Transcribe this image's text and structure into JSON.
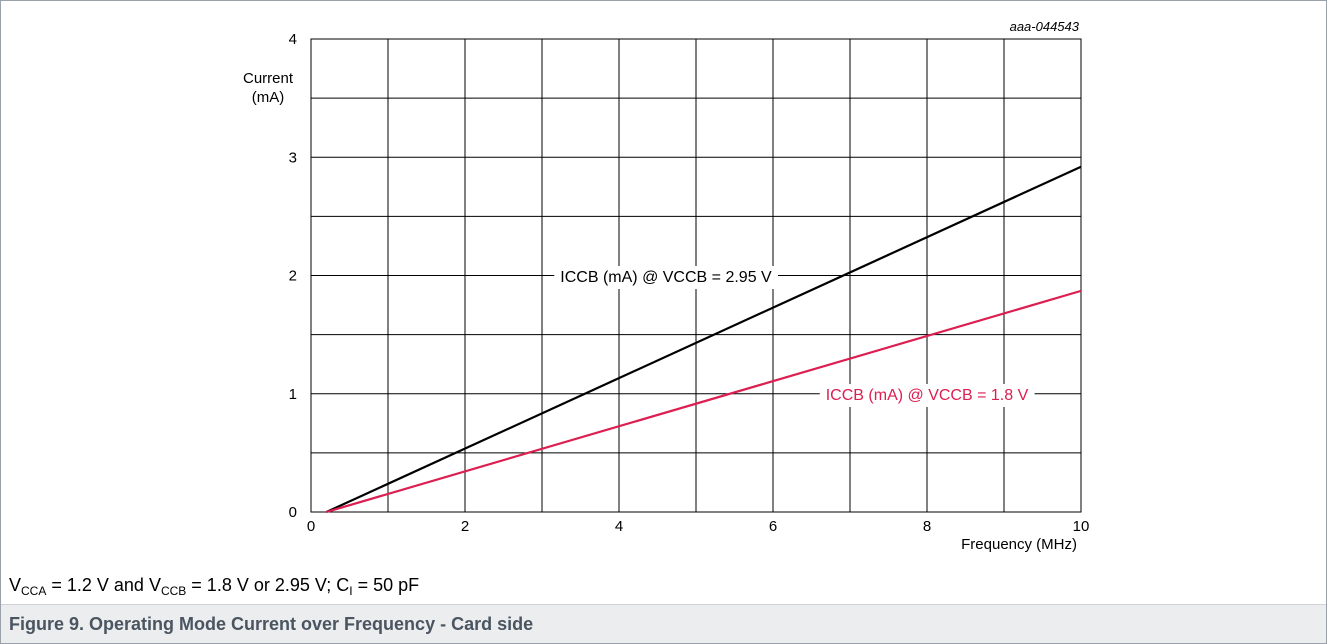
{
  "figure_id": "aaa-044543",
  "caption": "Figure 9.  Operating Mode Current over Frequency - Card side",
  "conditions": {
    "vcca_main": "V",
    "vcca_sub": "CCA",
    "vcca_rest": " = 1.2 V and ",
    "vccb_main": "V",
    "vccb_sub": "CCB",
    "vccb_rest": " = 1.8 V or 2.95 V; ",
    "ci_main": "C",
    "ci_sub": "I",
    "ci_rest": " = 50 pF"
  },
  "colors": {
    "series_2_95": "#000000",
    "series_1_8": "#dc1e50",
    "grid": "#000000"
  },
  "chart_data": {
    "type": "line",
    "xlabel": "Frequency (MHz)",
    "ylabel_line1": "Current",
    "ylabel_line2": "(mA)",
    "xlim": [
      0,
      10
    ],
    "ylim": [
      0,
      4
    ],
    "x_ticks": [
      0,
      2,
      4,
      6,
      8,
      10
    ],
    "y_ticks": [
      0,
      1,
      2,
      3,
      4
    ],
    "x_grid_step": 1,
    "y_grid_step": 0.5,
    "grid": true,
    "series": [
      {
        "name": "ICCB (mA) @ VCCB = 2.95 V",
        "color": "#000000",
        "x": [
          0.2,
          10
        ],
        "y": [
          0.0,
          2.92
        ]
      },
      {
        "name": "ICCB (mA) @ VCCB = 1.8 V",
        "color": "#dc1e50",
        "x": [
          0.2,
          10
        ],
        "y": [
          0.0,
          1.87
        ]
      }
    ]
  }
}
